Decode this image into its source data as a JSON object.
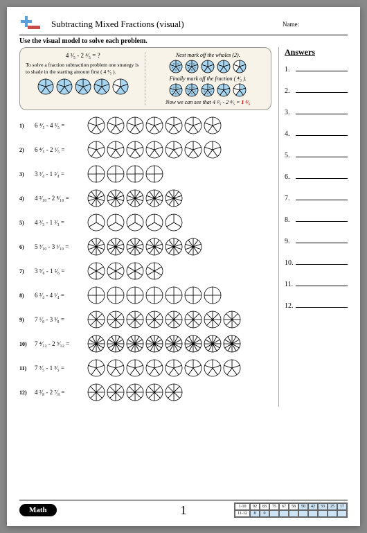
{
  "header": {
    "title": "Subtracting Mixed Fractions (visual)",
    "name_label": "Name:"
  },
  "instruction": "Use the visual model to solve each problem.",
  "example": {
    "equation_text": "4 ³⁄₅ - 2 ⁴⁄₅ = ?",
    "text1": "To solve a fraction subtraction problem one strategy is to shade in the starting amount first ( 4 ³⁄₅ ).",
    "line_a": "Next mark off the wholes (2).",
    "line_b": "Finally mark off the fraction ( ⁴⁄₅ ).",
    "line_c": "Now we can see that 4 ³⁄₅ - 2 ⁴⁄₅ = ",
    "result": "1 ⁴⁄₅",
    "left_circles": {
      "count": 5,
      "segments": 5,
      "filled": [
        5,
        5,
        5,
        5,
        3
      ],
      "radius": 11,
      "fill_color": "#a8d5f0",
      "stroke_color": "#000"
    },
    "right_circles_a": {
      "count": 5,
      "segments": 5,
      "filled": [
        5,
        5,
        5,
        5,
        3
      ],
      "marked": [
        5,
        5,
        0,
        0,
        0
      ],
      "radius": 9,
      "fill_color": "#a8d5f0",
      "stroke_color": "#000"
    },
    "right_circles_b": {
      "count": 5,
      "segments": 5,
      "filled": [
        5,
        5,
        5,
        5,
        3
      ],
      "marked": [
        5,
        5,
        4,
        0,
        0
      ],
      "radius": 9,
      "fill_color": "#a8d5f0",
      "stroke_color": "#000"
    }
  },
  "circle_style": {
    "stroke": "#000",
    "stroke_width": 0.8
  },
  "problems": [
    {
      "n": "1)",
      "expr": "6 ⁴⁄₅ - 4 ²⁄₅ =",
      "segments": 5,
      "count": 7,
      "radius": 12
    },
    {
      "n": "2)",
      "expr": "6 ⁴⁄₅ - 2 ¹⁄₅ =",
      "segments": 5,
      "count": 7,
      "radius": 12
    },
    {
      "n": "3)",
      "expr": "3 ¹⁄₄ - 1 ²⁄₄ =",
      "segments": 4,
      "count": 4,
      "radius": 12
    },
    {
      "n": "4)",
      "expr": "4 ²⁄₁₀ - 2 ⁸⁄₁₀ =",
      "segments": 10,
      "count": 5,
      "radius": 12
    },
    {
      "n": "5)",
      "expr": "4 ²⁄₃ - 1 ²⁄₃ =",
      "segments": 3,
      "count": 5,
      "radius": 12
    },
    {
      "n": "6)",
      "expr": "5 ³⁄₁₀ - 3 ¹⁄₁₀ =",
      "segments": 10,
      "count": 6,
      "radius": 12
    },
    {
      "n": "7)",
      "expr": "3 ⁵⁄₆ - 1 ²⁄₆ =",
      "segments": 6,
      "count": 4,
      "radius": 12
    },
    {
      "n": "8)",
      "expr": "6 ²⁄₄ - 4 ¹⁄₄ =",
      "segments": 4,
      "count": 7,
      "radius": 12
    },
    {
      "n": "9)",
      "expr": "7 ¹⁄₈ - 3 ³⁄₈ =",
      "segments": 8,
      "count": 8,
      "radius": 12
    },
    {
      "n": "10)",
      "expr": "7 ⁴⁄₁₂ - 2 ⁵⁄₁₂ =",
      "segments": 12,
      "count": 8,
      "radius": 12
    },
    {
      "n": "11)",
      "expr": "7 ³⁄₅ - 1 ³⁄₅ =",
      "segments": 5,
      "count": 8,
      "radius": 12
    },
    {
      "n": "12)",
      "expr": "4 ²⁄₈ - 2 ⁷⁄₈ =",
      "segments": 8,
      "count": 5,
      "radius": 12
    }
  ],
  "answers": {
    "title": "Answers",
    "count": 12
  },
  "footer": {
    "badge": "Math",
    "page": "1",
    "rows": [
      {
        "label": "1-10",
        "cells": [
          "92",
          "83",
          "75",
          "67",
          "58",
          "50",
          "42",
          "33",
          "25",
          "17"
        ],
        "shaded_from": 5
      },
      {
        "label": "11-12",
        "cells": [
          "8",
          "0",
          "",
          "",
          "",
          "",
          "",
          "",
          "",
          ""
        ],
        "shaded_from": 0
      }
    ]
  }
}
